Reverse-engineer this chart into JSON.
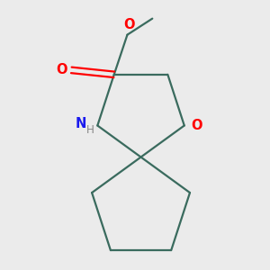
{
  "background_color": "#ebebeb",
  "bond_color": "#3a6b5e",
  "bond_width": 1.6,
  "atom_colors": {
    "O": "#ff0000",
    "N": "#1a1aee",
    "C": "#3a6b5e",
    "H": "#888888"
  },
  "figsize": [
    3.0,
    3.0
  ],
  "dpi": 100,
  "font_size": 10.5
}
